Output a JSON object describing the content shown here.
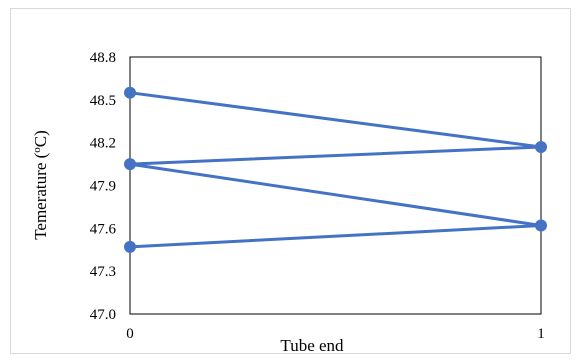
{
  "chart_data": {
    "type": "line",
    "title": "",
    "xlabel": "Tube end",
    "ylabel": "Temerature (",
    "ylabel_sup": "o",
    "ylabel_unit": "C)",
    "x_ticks": [
      "0",
      "1"
    ],
    "y_ticks": [
      "47.0",
      "47.3",
      "47.6",
      "47.9",
      "48.2",
      "48.5",
      "48.8"
    ],
    "ylim": [
      47.0,
      48.8
    ],
    "xlim": [
      0,
      1
    ],
    "grid": false,
    "series": [
      {
        "color": "#4472c4",
        "points": [
          [
            0,
            48.55
          ],
          [
            1,
            48.17
          ],
          [
            0,
            48.05
          ],
          [
            1,
            47.62
          ],
          [
            0,
            47.47
          ]
        ]
      }
    ]
  }
}
